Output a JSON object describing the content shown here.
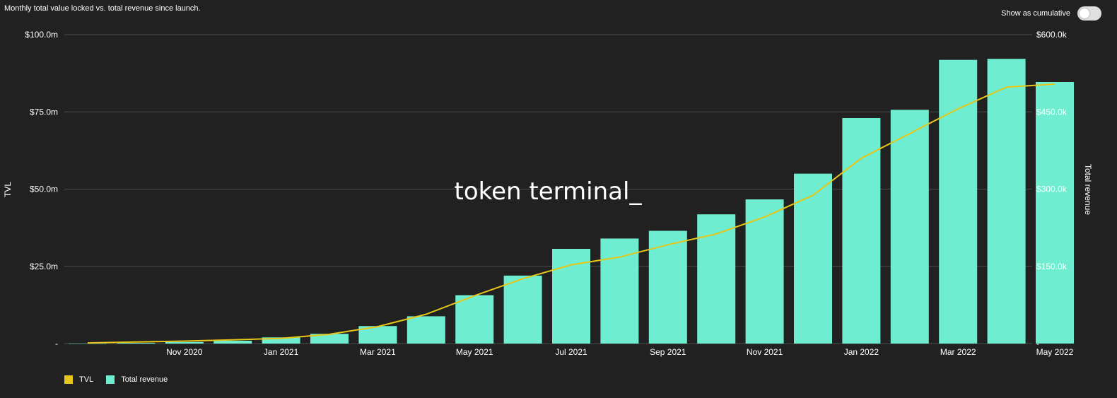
{
  "header": {
    "subtitle": "Monthly total value locked vs. total revenue since launch.",
    "toggle_label": "Show as cumulative",
    "toggle_on": false
  },
  "watermark": "token terminal_",
  "colors": {
    "tvl": "#e6c619",
    "revenue": "#6eedd0",
    "background": "#212121",
    "grid": "#4a4a4a"
  },
  "legend": [
    {
      "label": "TVL",
      "color": "#e6c619"
    },
    {
      "label": "Total revenue",
      "color": "#6eedd0"
    }
  ],
  "chart_data": {
    "type": "bar",
    "title": "",
    "categories": [
      "2020-09",
      "2020-10",
      "2020-11",
      "2020-12",
      "2021-01",
      "2021-02",
      "2021-03",
      "2021-04",
      "2021-05",
      "2021-06",
      "2021-07",
      "2021-08",
      "2021-09",
      "2021-10",
      "2021-11",
      "2021-12",
      "2022-01",
      "2022-02",
      "2022-03",
      "2022-04",
      "2022-05"
    ],
    "x_tick_labels": [
      "Nov 2020",
      "Jan 2021",
      "Mar 2021",
      "May 2021",
      "Jul 2021",
      "Sep 2021",
      "Nov 2021",
      "Jan 2022",
      "Mar 2022",
      "May 2022"
    ],
    "x_tick_indices": [
      2,
      4,
      6,
      8,
      10,
      12,
      14,
      16,
      18,
      20
    ],
    "series": [
      {
        "name": "Total revenue",
        "type": "bar",
        "axis": "right",
        "values": [
          200,
          1500,
          3000,
          5500,
          12000,
          19000,
          34000,
          53000,
          94000,
          132000,
          184000,
          204000,
          219000,
          251000,
          280000,
          330000,
          438000,
          454000,
          551000,
          553000,
          508000
        ]
      },
      {
        "name": "TVL",
        "type": "line",
        "axis": "left",
        "values": [
          0.2,
          0.5,
          0.8,
          1.2,
          1.7,
          3.0,
          5.5,
          9.5,
          15.5,
          21.0,
          25.5,
          28.0,
          32.0,
          35.5,
          41.0,
          48.0,
          60.0,
          68.0,
          76.0,
          83.0,
          84.0
        ]
      }
    ],
    "ylabel": "TVL",
    "ylabel_right": "Total revenue",
    "ylim": [
      0,
      100
    ],
    "ylim_right": [
      0,
      600000
    ],
    "y_ticks": [
      "-",
      "$25.0m",
      "$50.0m",
      "$75.0m",
      "$100.0m"
    ],
    "y_ticks_right": [
      "-",
      "$150.0k",
      "$300.0k",
      "$450.0k",
      "$600.0k"
    ],
    "grid": true,
    "legend_position": "bottom-left"
  }
}
